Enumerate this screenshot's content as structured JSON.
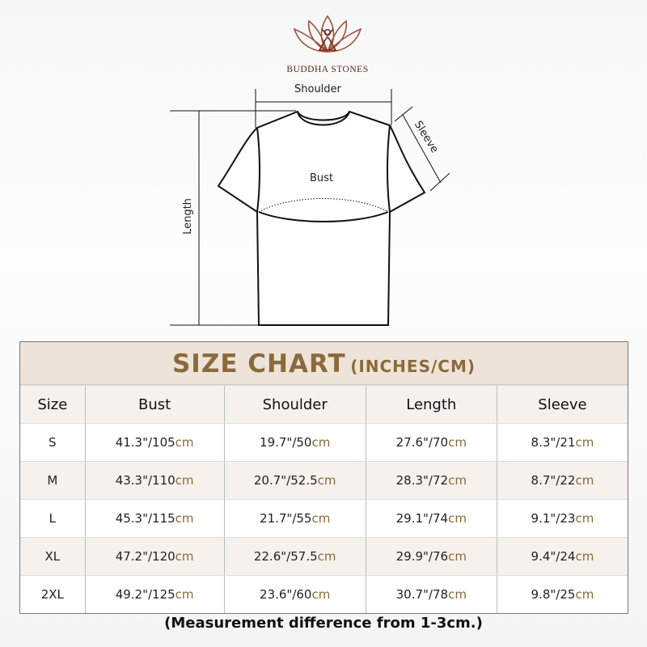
{
  "brand": {
    "name": "BUDDHA STONES"
  },
  "diagram": {
    "shoulder": "Shoulder",
    "sleeve": "Sleeve",
    "bust": "Bust",
    "length": "Length"
  },
  "table": {
    "title": "SIZE CHART",
    "title_unit": "(INCHES/CM)",
    "headers": [
      "Size",
      "Bust",
      "Shoulder",
      "Length",
      "Sleeve"
    ],
    "unit_suffix": "cm",
    "rows": [
      [
        "S",
        "41.3\"/105",
        "19.7\"/50",
        "27.6\"/70",
        "8.3\"/21"
      ],
      [
        "M",
        "43.3\"/110",
        "20.7\"/52.5",
        "28.3\"/72",
        "8.7\"/22"
      ],
      [
        "L",
        "45.3\"/115",
        "21.7\"/55",
        "29.1\"/74",
        "9.1\"/23"
      ],
      [
        "XL",
        "47.2\"/120",
        "22.6\"/57.5",
        "29.9\"/76",
        "9.4\"/24"
      ],
      [
        "2XL",
        "49.2\"/125",
        "23.6\"/60",
        "30.7\"/78",
        "9.8\"/25"
      ]
    ]
  },
  "note": "(Measurement difference from 1-3cm.)",
  "colors": {
    "accent": "#8a6a3c",
    "title_bg": "#ede3d8",
    "logo": "#8b3a2a"
  }
}
